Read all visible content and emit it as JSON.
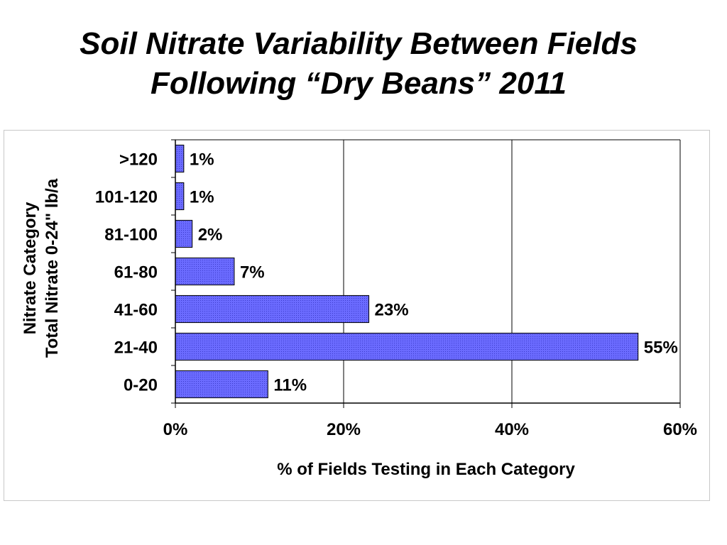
{
  "title_line1": "Soil Nitrate Variability Between Fields",
  "title_line2": "Following “Dry Beans” 2011",
  "chart_data": {
    "type": "bar",
    "orientation": "horizontal",
    "categories": [
      "0-20",
      "21-40",
      "41-60",
      "61-80",
      "81-100",
      "101-120",
      ">120"
    ],
    "values": [
      11,
      55,
      23,
      7,
      2,
      1,
      1
    ],
    "data_labels": [
      "11%",
      "55%",
      "23%",
      "7%",
      "2%",
      "1%",
      "1%"
    ],
    "xlabel": "% of Fields Testing in Each Category",
    "ylabel_lines": [
      "Nitrate Category",
      "Total Nitrate 0-24\" lb/a"
    ],
    "xlim": [
      0,
      60
    ],
    "xticks": [
      0,
      20,
      40,
      60
    ],
    "xtick_labels": [
      "0%",
      "20%",
      "40%",
      "60%"
    ],
    "grid": "vertical",
    "legend": "none",
    "bar_color": "#6666ff",
    "bar_edge_color": "#000000"
  }
}
